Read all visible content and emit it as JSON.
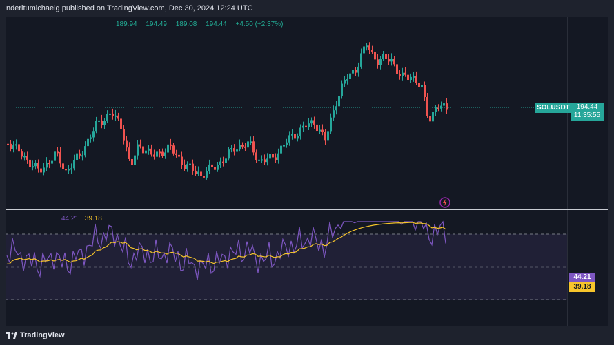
{
  "header": {
    "publish_text": "nderitumichaelg published on TradingView.com, Dec 30, 2024 12:24 UTC"
  },
  "ohlc": {
    "open": "189.94",
    "high": "194.49",
    "low": "189.08",
    "close": "194.44",
    "change": "+4.50 (+2.37%)"
  },
  "price_tag": {
    "symbol": "SOLUSDT",
    "price": "194.44",
    "countdown": "11:35:55"
  },
  "rsi": {
    "value": "44.21",
    "ma": "39.18"
  },
  "footer": {
    "brand": "TradingView"
  },
  "colors": {
    "up": "#26a69a",
    "down": "#ef5350",
    "rsi": "#7e57c2",
    "rsi_ma": "#f7c52b"
  },
  "icons": {
    "alert": "lightning-bolt-icon",
    "logo": "tradingview-logo-icon"
  }
}
